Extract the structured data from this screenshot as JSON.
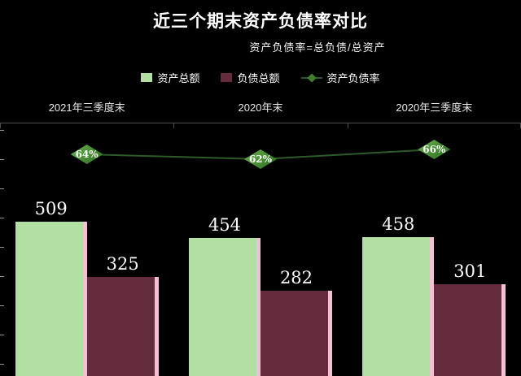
{
  "title": "近三个期末资产负债率对比",
  "subtitle": "资产负债率=总负债/总资产",
  "legend": {
    "items": [
      {
        "label": "资产总额",
        "type": "square",
        "color": "#b2dfa2"
      },
      {
        "label": "负债总额",
        "type": "square",
        "color": "#652c3e"
      },
      {
        "label": "资产负债率",
        "type": "line-diamond",
        "color": "#3f7d31",
        "line_color": "#2d5b28"
      }
    ]
  },
  "colors": {
    "background": "#000000",
    "assets_bar": "#b2dfa2",
    "liabilities_bar": "#652c3e",
    "bar_edge_pink": "#f2c0d4",
    "rate_line": "#2d5b28",
    "rate_marker": "#4c9238",
    "axis": "#4d4d4d",
    "text": "#ffffff"
  },
  "chart_data": {
    "type": "bar",
    "categories": [
      "2021年三季度末",
      "2020年末",
      "2020年三季度末"
    ],
    "series": [
      {
        "name": "资产总额",
        "type": "bar",
        "values": [
          509,
          454,
          458
        ],
        "color": "#b2dfa2"
      },
      {
        "name": "负债总额",
        "type": "bar",
        "values": [
          325,
          282,
          301
        ],
        "color": "#652c3e"
      },
      {
        "name": "资产负债率",
        "type": "line",
        "values": [
          64,
          62,
          66
        ],
        "labels": [
          "64%",
          "62%",
          "66%"
        ],
        "color": "#2d5b28"
      }
    ],
    "title": "近三个期末资产负债率对比",
    "subtitle": "资产负债率=总负债/总资产",
    "xlabel": "",
    "ylabel": "",
    "legend_position": "top",
    "grid": false,
    "background": "black"
  }
}
